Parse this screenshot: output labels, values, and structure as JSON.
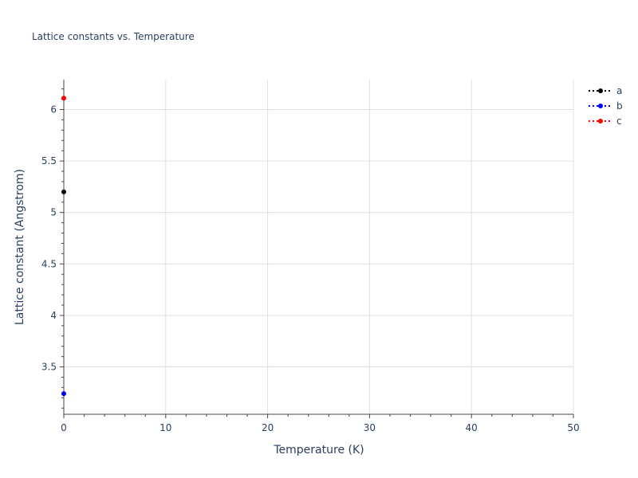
{
  "chart_data": {
    "type": "scatter",
    "title": "Lattice constants vs. Temperature",
    "xlabel": "Temperature (K)",
    "ylabel": "Lattice constant (Angstrom)",
    "xlim": [
      0,
      50
    ],
    "ylim": [
      3.04,
      6.29
    ],
    "xticks": [
      0,
      10,
      20,
      30,
      40,
      50
    ],
    "yticks": [
      3.5,
      4,
      4.5,
      5,
      5.5,
      6
    ],
    "ytick_labels": [
      "3.5",
      "4",
      "4.5",
      "5",
      "5.5",
      "6"
    ],
    "xtick_labels": [
      "0",
      "10",
      "20",
      "30",
      "40",
      "50"
    ],
    "grid": true,
    "legend_position": "top-right",
    "series": [
      {
        "name": "a",
        "color": "#000000",
        "line": "dotted",
        "x": [
          0
        ],
        "y": [
          5.2
        ]
      },
      {
        "name": "b",
        "color": "#0000ff",
        "line": "dotted",
        "x": [
          0
        ],
        "y": [
          3.24
        ]
      },
      {
        "name": "c",
        "color": "#ff0000",
        "line": "dotted",
        "x": [
          0
        ],
        "y": [
          6.11
        ]
      }
    ]
  }
}
